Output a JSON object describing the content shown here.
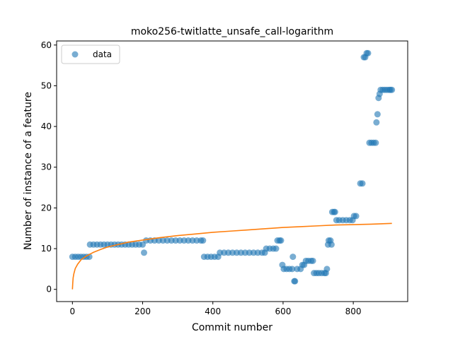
{
  "chart_data": {
    "type": "scatter",
    "title": "moko256-twitlatte_unsafe_call-logarithm",
    "xlabel": "Commit number",
    "ylabel": "Number of instance of a feature",
    "xlim": [
      -45,
      955
    ],
    "ylim": [
      -3,
      61
    ],
    "xticks": [
      0,
      200,
      400,
      600,
      800
    ],
    "yticks": [
      0,
      10,
      20,
      30,
      40,
      50,
      60
    ],
    "legend": {
      "placement": "top-left",
      "entries": [
        "data"
      ]
    },
    "grid": false,
    "series": [
      {
        "name": "data",
        "kind": "scatter",
        "color": "#1f77b4",
        "points": [
          [
            0,
            8
          ],
          [
            8,
            8
          ],
          [
            16,
            8
          ],
          [
            24,
            8
          ],
          [
            32,
            8
          ],
          [
            40,
            8
          ],
          [
            48,
            8
          ],
          [
            50,
            11
          ],
          [
            60,
            11
          ],
          [
            70,
            11
          ],
          [
            80,
            11
          ],
          [
            90,
            11
          ],
          [
            100,
            11
          ],
          [
            110,
            11
          ],
          [
            120,
            11
          ],
          [
            130,
            11
          ],
          [
            140,
            11
          ],
          [
            150,
            11
          ],
          [
            160,
            11
          ],
          [
            170,
            11
          ],
          [
            180,
            11
          ],
          [
            190,
            11
          ],
          [
            200,
            11
          ],
          [
            204,
            9
          ],
          [
            210,
            12
          ],
          [
            222,
            12
          ],
          [
            234,
            12
          ],
          [
            246,
            12
          ],
          [
            258,
            12
          ],
          [
            270,
            12
          ],
          [
            282,
            12
          ],
          [
            294,
            12
          ],
          [
            306,
            12
          ],
          [
            318,
            12
          ],
          [
            330,
            12
          ],
          [
            342,
            12
          ],
          [
            354,
            12
          ],
          [
            366,
            12
          ],
          [
            372,
            12
          ],
          [
            375,
            8
          ],
          [
            385,
            8
          ],
          [
            395,
            8
          ],
          [
            405,
            8
          ],
          [
            415,
            8
          ],
          [
            420,
            9
          ],
          [
            432,
            9
          ],
          [
            444,
            9
          ],
          [
            456,
            9
          ],
          [
            468,
            9
          ],
          [
            480,
            9
          ],
          [
            492,
            9
          ],
          [
            504,
            9
          ],
          [
            516,
            9
          ],
          [
            528,
            9
          ],
          [
            540,
            9
          ],
          [
            548,
            9
          ],
          [
            552,
            10
          ],
          [
            562,
            10
          ],
          [
            572,
            10
          ],
          [
            580,
            10
          ],
          [
            584,
            12
          ],
          [
            590,
            12
          ],
          [
            594,
            12
          ],
          [
            598,
            6
          ],
          [
            602,
            5
          ],
          [
            610,
            5
          ],
          [
            618,
            5
          ],
          [
            626,
            5
          ],
          [
            628,
            8
          ],
          [
            632,
            2
          ],
          [
            634,
            2
          ],
          [
            640,
            5
          ],
          [
            650,
            5
          ],
          [
            655,
            6
          ],
          [
            660,
            6
          ],
          [
            665,
            7
          ],
          [
            672,
            7
          ],
          [
            680,
            7
          ],
          [
            685,
            7
          ],
          [
            688,
            4
          ],
          [
            695,
            4
          ],
          [
            702,
            4
          ],
          [
            710,
            4
          ],
          [
            718,
            4
          ],
          [
            722,
            4
          ],
          [
            725,
            5
          ],
          [
            728,
            11
          ],
          [
            730,
            12
          ],
          [
            735,
            12
          ],
          [
            738,
            11
          ],
          [
            740,
            19
          ],
          [
            745,
            19
          ],
          [
            748,
            19
          ],
          [
            752,
            17
          ],
          [
            760,
            17
          ],
          [
            770,
            17
          ],
          [
            780,
            17
          ],
          [
            790,
            17
          ],
          [
            798,
            17
          ],
          [
            802,
            18
          ],
          [
            808,
            18
          ],
          [
            820,
            26
          ],
          [
            826,
            26
          ],
          [
            830,
            57
          ],
          [
            834,
            57
          ],
          [
            838,
            58
          ],
          [
            842,
            58
          ],
          [
            846,
            36
          ],
          [
            852,
            36
          ],
          [
            858,
            36
          ],
          [
            864,
            36
          ],
          [
            866,
            41
          ],
          [
            869,
            43
          ],
          [
            872,
            47
          ],
          [
            875,
            48
          ],
          [
            878,
            49
          ],
          [
            884,
            49
          ],
          [
            890,
            49
          ],
          [
            896,
            49
          ],
          [
            902,
            49
          ],
          [
            906,
            49
          ],
          [
            910,
            49
          ]
        ]
      },
      {
        "name": "",
        "kind": "line",
        "color": "#ff7f0e",
        "points": [
          [
            0,
            0
          ],
          [
            1,
            1.6
          ],
          [
            2,
            2.8
          ],
          [
            4,
            3.8
          ],
          [
            8,
            5.1
          ],
          [
            15,
            6.2
          ],
          [
            25,
            7.3
          ],
          [
            40,
            8.2
          ],
          [
            60,
            9.1
          ],
          [
            80,
            9.8
          ],
          [
            100,
            10.4
          ],
          [
            130,
            11.0
          ],
          [
            160,
            11.6
          ],
          [
            200,
            12.1
          ],
          [
            250,
            12.7
          ],
          [
            300,
            13.2
          ],
          [
            350,
            13.6
          ],
          [
            400,
            14.0
          ],
          [
            450,
            14.3
          ],
          [
            500,
            14.6
          ],
          [
            550,
            14.9
          ],
          [
            600,
            15.2
          ],
          [
            650,
            15.4
          ],
          [
            700,
            15.6
          ],
          [
            750,
            15.8
          ],
          [
            800,
            15.9
          ],
          [
            850,
            16.0
          ],
          [
            910,
            16.2
          ]
        ]
      }
    ]
  }
}
